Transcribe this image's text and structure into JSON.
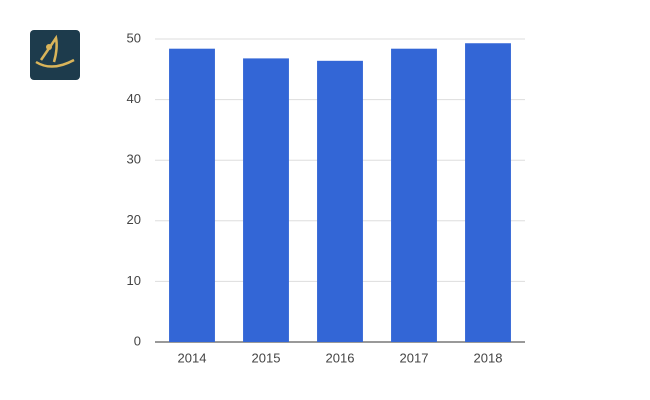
{
  "chart_data": {
    "type": "bar",
    "categories": [
      "2014",
      "2015",
      "2016",
      "2017",
      "2018"
    ],
    "values": [
      48.4,
      46.8,
      46.4,
      48.4,
      49.3
    ],
    "color": "#3366d6",
    "ylim": [
      0,
      50
    ],
    "yticks": [
      0,
      10,
      20,
      30,
      40,
      50
    ],
    "grid": true
  }
}
